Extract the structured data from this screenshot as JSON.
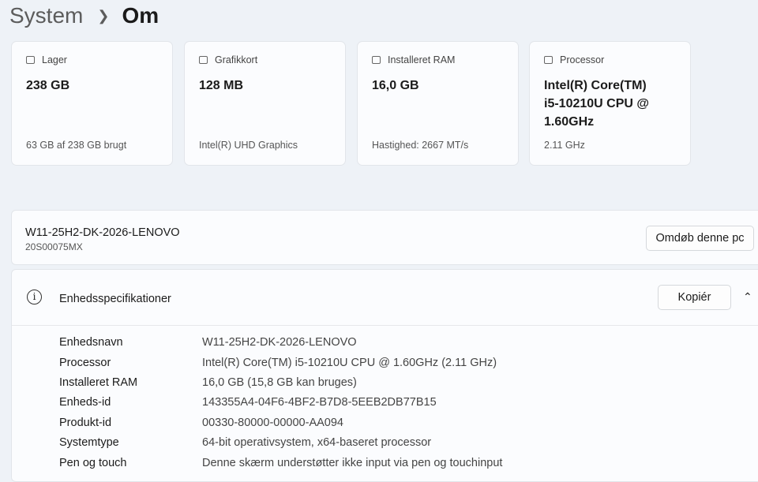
{
  "breadcrumb": {
    "parent": "System",
    "current": "Om"
  },
  "cards": [
    {
      "icon": "storage-icon",
      "label": "Lager",
      "value": "238 GB",
      "sub": "63 GB af 238 GB brugt"
    },
    {
      "icon": "graphics-card-icon",
      "label": "Grafikkort",
      "value": "128 MB",
      "sub": "Intel(R) UHD Graphics"
    },
    {
      "icon": "ram-icon",
      "label": "Installeret RAM",
      "value": "16,0 GB",
      "sub": "Hastighed: 2667 MT/s"
    },
    {
      "icon": "processor-icon",
      "label": "Processor",
      "value": "Intel(R) Core(TM) i5-10210U CPU @ 1.60GHz",
      "sub": "2.11 GHz"
    }
  ],
  "pc": {
    "name": "W11-25H2-DK-2026-LENOVO",
    "model": "20S00075MX",
    "rename_label": "Omdøb denne pc"
  },
  "specs": {
    "title": "Enhedsspecifikationer",
    "copy_label": "Kopiér",
    "rows": [
      {
        "k": "Enhedsnavn",
        "v": "W11-25H2-DK-2026-LENOVO"
      },
      {
        "k": "Processor",
        "v": "Intel(R) Core(TM) i5-10210U CPU @ 1.60GHz (2.11 GHz)"
      },
      {
        "k": "Installeret RAM",
        "v": "16,0 GB (15,8 GB kan bruges)"
      },
      {
        "k": "Enheds-id",
        "v": "143355A4-04F6-4BF2-B7D8-5EEB2DB77B15"
      },
      {
        "k": "Produkt-id",
        "v": "00330-80000-00000-AA094"
      },
      {
        "k": "Systemtype",
        "v": "64-bit operativsystem, x64-baseret processor"
      },
      {
        "k": "Pen og touch",
        "v": "Denne skærm understøtter ikke input via pen og touchinput"
      }
    ]
  }
}
